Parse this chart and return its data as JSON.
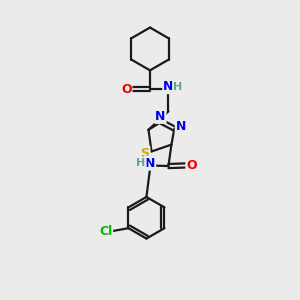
{
  "bg_color": "#ebebeb",
  "bond_color": "#1a1a1a",
  "bond_width": 1.6,
  "atom_colors": {
    "C": "#1a1a1a",
    "N": "#0000ee",
    "O": "#ee0000",
    "S": "#ccaa00",
    "Cl": "#00bb00",
    "H": "#5aaa8a"
  },
  "font_size_atom": 9,
  "font_size_small": 8
}
